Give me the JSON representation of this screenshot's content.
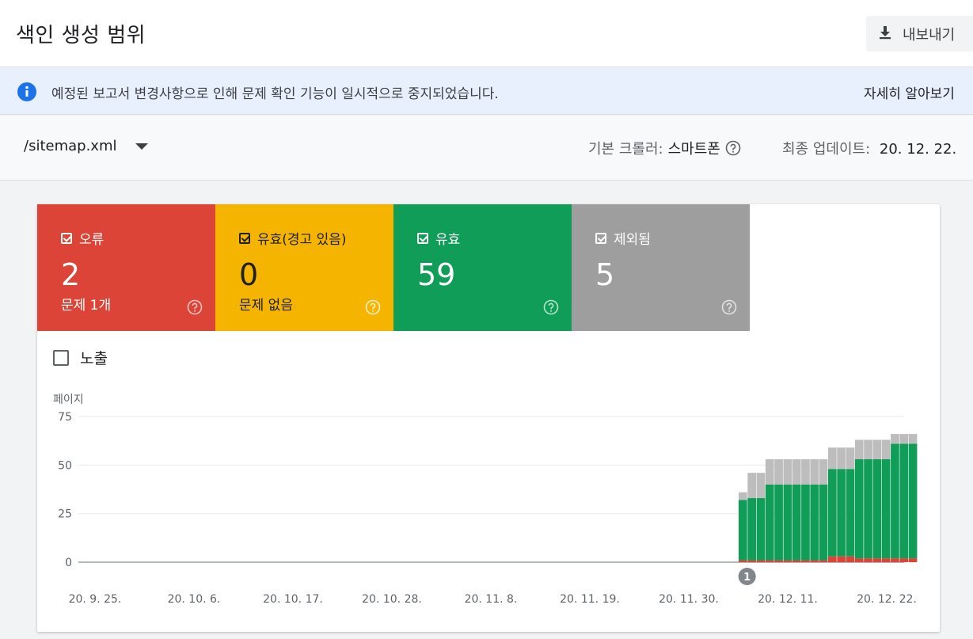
{
  "header": {
    "title": "색인 생성 범위",
    "export_label": "내보내기"
  },
  "banner": {
    "message": "예정된 보고서 변경사항으로 인해 문제 확인 기능이 일시적으로 중지되었습니다.",
    "link": "자세히 알아보기"
  },
  "filter": {
    "sitemap": "/sitemap.xml",
    "crawler_label": "기본 크롤러:",
    "crawler_value": "스마트폰",
    "updated_label": "최종 업데이트:",
    "updated_value": "20. 12. 22."
  },
  "tiles": [
    {
      "label": "오류",
      "count": "2",
      "sub": "문제 1개",
      "color": "#db4437"
    },
    {
      "label": "유효(경고 있음)",
      "count": "0",
      "sub": "문제 없음",
      "color": "#f4b400"
    },
    {
      "label": "유효",
      "count": "59",
      "sub": "",
      "color": "#0f9d58"
    },
    {
      "label": "제외됨",
      "count": "5",
      "sub": "",
      "color": "#9e9e9e"
    }
  ],
  "impressions_label": "노출",
  "chart_data": {
    "type": "bar",
    "stacked": true,
    "ylabel": "페이지",
    "ylim": [
      0,
      75
    ],
    "y_ticks": [
      0,
      25,
      50,
      75
    ],
    "x_tick_labels": [
      "20. 9. 25.",
      "20. 10. 6.",
      "20. 10. 17.",
      "20. 10. 28.",
      "20. 11. 8.",
      "20. 11. 19.",
      "20. 11. 30.",
      "20. 12. 11.",
      "20. 12. 22."
    ],
    "annotation": {
      "label": "1",
      "category": "20. 12. 3."
    },
    "categories": [
      "20. 12. 3.",
      "20. 12. 4.",
      "20. 12. 5.",
      "20. 12. 6.",
      "20. 12. 7.",
      "20. 12. 8.",
      "20. 12. 9.",
      "20. 12. 10.",
      "20. 12. 11.",
      "20. 12. 12.",
      "20. 12. 13.",
      "20. 12. 14.",
      "20. 12. 15.",
      "20. 12. 16.",
      "20. 12. 17.",
      "20. 12. 18.",
      "20. 12. 19.",
      "20. 12. 20.",
      "20. 12. 21.",
      "20. 12. 22."
    ],
    "series": [
      {
        "name": "오류",
        "color": "#db4437",
        "values": [
          1,
          1,
          1,
          1,
          1,
          1,
          1,
          1,
          1,
          1,
          3,
          3,
          3,
          2,
          2,
          2,
          2,
          2,
          2,
          2
        ]
      },
      {
        "name": "유효(경고 있음)",
        "color": "#f4b400",
        "values": [
          0,
          0,
          0,
          0,
          0,
          0,
          0,
          0,
          0,
          0,
          0,
          0,
          0,
          0,
          0,
          0,
          0,
          0,
          0,
          0
        ]
      },
      {
        "name": "유효",
        "color": "#0f9d58",
        "values": [
          31,
          32,
          32,
          39,
          39,
          39,
          39,
          39,
          39,
          39,
          45,
          45,
          45,
          51,
          51,
          51,
          51,
          59,
          59,
          59
        ]
      },
      {
        "name": "제외됨",
        "color": "#bdbdbd",
        "values": [
          4,
          13,
          13,
          13,
          13,
          13,
          13,
          13,
          13,
          13,
          11,
          11,
          11,
          10,
          10,
          10,
          10,
          5,
          5,
          5
        ]
      }
    ]
  }
}
